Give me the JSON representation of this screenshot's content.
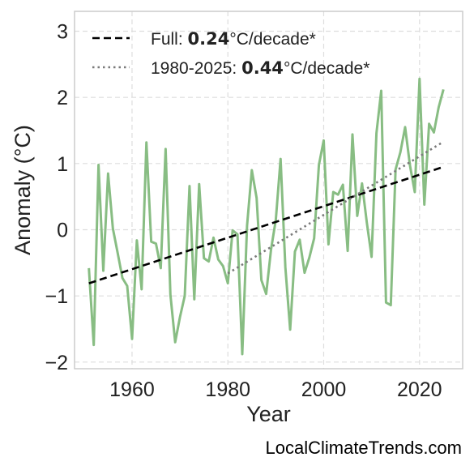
{
  "chart_data": {
    "type": "line",
    "xlabel": "Year",
    "ylabel": "Anomaly (°C)",
    "xlim": [
      1948,
      2029
    ],
    "ylim": [
      -2.1,
      3.3
    ],
    "xticks": [
      1960,
      1980,
      2000,
      2020
    ],
    "yticks": [
      -2,
      -1,
      0,
      1,
      2,
      3
    ],
    "grid": true,
    "legend_position": "top-left",
    "credit": "LocalClimateTrends.com",
    "colors": {
      "series": "#88bd83",
      "full_trend": "#000000",
      "recent_trend": "#7a7a7a",
      "grid": "#dddddd",
      "frame": "#cccccc"
    },
    "series": [
      {
        "x": [
          1951,
          1952,
          1953,
          1954,
          1955,
          1956,
          1957,
          1958,
          1959,
          1960,
          1961,
          1962,
          1963,
          1964,
          1965,
          1966,
          1967,
          1968,
          1969,
          1970,
          1971,
          1972,
          1973,
          1974,
          1975,
          1976,
          1977,
          1978,
          1979,
          1980,
          1981,
          1982,
          1983,
          1984,
          1985,
          1986,
          1987,
          1988,
          1989,
          1990,
          1991,
          1992,
          1993,
          1994,
          1995,
          1996,
          1997,
          1998,
          1999,
          2000,
          2001,
          2002,
          2003,
          2004,
          2005,
          2006,
          2007,
          2008,
          2009,
          2010,
          2011,
          2012,
          2013,
          2014,
          2015,
          2016,
          2017,
          2018,
          2019,
          2020,
          2021,
          2022,
          2023,
          2024,
          2025
        ],
        "y": [
          -0.58,
          -1.74,
          0.98,
          -0.62,
          0.85,
          0.02,
          -0.35,
          -0.73,
          -0.85,
          -1.65,
          -0.16,
          -0.9,
          1.32,
          -0.18,
          -0.21,
          -0.58,
          1.22,
          -0.98,
          -1.7,
          -1.32,
          -1.0,
          0.66,
          -1.05,
          0.69,
          -0.43,
          -0.48,
          -0.12,
          -0.45,
          -0.55,
          -0.81,
          -0.01,
          -0.07,
          -1.88,
          0.06,
          0.9,
          0.48,
          -0.76,
          -0.97,
          -0.3,
          0.15,
          1.07,
          -0.57,
          -1.51,
          -0.33,
          -0.15,
          -0.65,
          -0.42,
          -0.13,
          0.98,
          1.35,
          -0.22,
          0.57,
          0.53,
          0.68,
          -0.32,
          1.44,
          0.21,
          0.7,
          0.11,
          -0.41,
          1.46,
          2.1,
          -1.1,
          -1.14,
          0.91,
          1.17,
          1.55,
          0.97,
          0.57,
          2.28,
          0.38,
          1.6,
          1.47,
          1.85,
          2.12
        ]
      }
    ],
    "trends": [
      {
        "label_prefix": "Full: ",
        "rate": "0.24",
        "label_suffix": "°C/decade*",
        "style": "dashed",
        "x": [
          1951,
          2025
        ],
        "y": [
          -0.81,
          0.95
        ]
      },
      {
        "label_prefix": "1980-2025: ",
        "rate": "0.44",
        "label_suffix": "°C/decade*",
        "style": "dotted",
        "x": [
          1980,
          2025
        ],
        "y": [
          -0.66,
          1.33
        ]
      }
    ]
  }
}
